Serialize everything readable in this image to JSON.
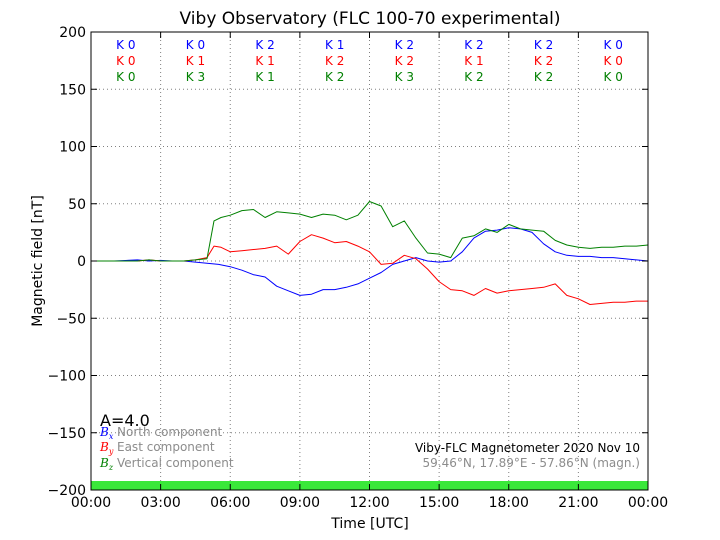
{
  "chart_data": {
    "type": "line",
    "title": "Viby Observatory (FLC 100-70 experimental)",
    "xlabel": "Time [UTC]",
    "ylabel": "Magnetic field [nT]",
    "xlim": [
      0,
      24
    ],
    "ylim": [
      -200,
      200
    ],
    "x_ticks": [
      "00:00",
      "03:00",
      "06:00",
      "09:00",
      "12:00",
      "15:00",
      "18:00",
      "21:00",
      "00:00"
    ],
    "y_ticks": [
      "200",
      "150",
      "100",
      "50",
      "0",
      "−50",
      "−100",
      "−150",
      "−200"
    ],
    "grid": true,
    "activity_index": "A=4.0",
    "k_indices": {
      "north": [
        "K 0",
        "K 0",
        "K 2",
        "K 1",
        "K 2",
        "K 2",
        "K 2",
        "K 0"
      ],
      "east": [
        "K 0",
        "K 1",
        "K 1",
        "K 2",
        "K 2",
        "K 1",
        "K 2",
        "K 0"
      ],
      "vertical": [
        "K 0",
        "K 3",
        "K 1",
        "K 2",
        "K 3",
        "K 2",
        "K 2",
        "K 0"
      ]
    },
    "series": [
      {
        "name": "North component",
        "symbol": "B",
        "subscript": "x",
        "color": "#0000ff",
        "x": [
          0,
          1,
          2,
          2.5,
          3,
          3.5,
          4,
          4.5,
          5,
          5.5,
          6,
          6.5,
          7,
          7.5,
          8,
          8.5,
          9,
          9.5,
          10,
          10.5,
          11,
          11.5,
          12,
          12.5,
          13,
          13.5,
          14,
          14.5,
          15,
          15.5,
          16,
          16.5,
          17,
          17.5,
          18,
          18.5,
          19,
          19.5,
          20,
          20.5,
          21,
          21.5,
          22,
          22.5,
          23,
          23.5,
          24
        ],
        "values": [
          0,
          0,
          1,
          0,
          0.5,
          0,
          0,
          -1,
          -2,
          -3,
          -5,
          -8,
          -12,
          -14,
          -22,
          -26,
          -30,
          -29,
          -25,
          -25,
          -23,
          -20,
          -15,
          -10,
          -3,
          0,
          3,
          0,
          -1,
          0,
          8,
          20,
          26,
          27,
          29,
          28,
          25,
          15,
          8,
          5,
          4,
          4,
          3,
          3,
          2,
          1,
          0
        ]
      },
      {
        "name": "East component",
        "symbol": "B",
        "subscript": "y",
        "color": "#ff0000",
        "x": [
          0,
          1,
          2,
          2.5,
          3,
          3.5,
          4,
          4.5,
          5,
          5.3,
          5.6,
          6,
          6.5,
          7,
          7.5,
          8,
          8.5,
          9,
          9.5,
          10,
          10.5,
          11,
          11.5,
          12,
          12.5,
          13,
          13.5,
          14,
          14.5,
          15,
          15.5,
          16,
          16.5,
          17,
          17.5,
          18,
          18.5,
          19,
          19.5,
          20,
          20.5,
          21,
          21.5,
          22,
          22.5,
          23,
          23.5,
          24
        ],
        "values": [
          0,
          0,
          0,
          1,
          0,
          0,
          0,
          1,
          3,
          13,
          12,
          8,
          9,
          10,
          11,
          13,
          6,
          17,
          23,
          20,
          16,
          17,
          13,
          8,
          -3,
          -2,
          5,
          2,
          -7,
          -18,
          -25,
          -26,
          -30,
          -24,
          -28,
          -26,
          -25,
          -24,
          -23,
          -20,
          -30,
          -33,
          -38,
          -37,
          -36,
          -36,
          -35,
          -35
        ]
      },
      {
        "name": "Vertical component",
        "symbol": "B",
        "subscript": "z",
        "color": "#008000",
        "x": [
          0,
          1,
          2,
          2.5,
          3,
          3.5,
          4,
          4.5,
          5,
          5.3,
          5.6,
          6,
          6.5,
          7,
          7.5,
          8,
          8.5,
          9,
          9.5,
          10,
          10.5,
          11,
          11.5,
          12,
          12.5,
          13,
          13.5,
          14,
          14.5,
          15,
          15.5,
          16,
          16.5,
          17,
          17.5,
          18,
          18.5,
          19,
          19.5,
          20,
          20.5,
          21,
          21.5,
          22,
          22.5,
          23,
          23.5,
          24
        ],
        "values": [
          0,
          0,
          0,
          1,
          0,
          0,
          0,
          1,
          2,
          35,
          38,
          40,
          44,
          45,
          38,
          43,
          42,
          41,
          38,
          41,
          40,
          36,
          40,
          52,
          48,
          30,
          35,
          20,
          7,
          6,
          3,
          20,
          22,
          28,
          25,
          32,
          28,
          27,
          26,
          18,
          14,
          12,
          11,
          12,
          12,
          13,
          13,
          14
        ]
      }
    ],
    "legend": {
      "placement": "bottom-left",
      "entries": [
        "North component",
        "East component",
        "Vertical component"
      ]
    },
    "info": {
      "line1": "Viby-FLC Magnetometer 2020 Nov 10",
      "line2": "59.46°N, 17.89°E - 57.86°N (magn.)"
    },
    "colors": {
      "status_bar": "#3ae83a",
      "info_line1": "#000000",
      "info_line2": "#8c8c8c",
      "grid": "#808080"
    }
  }
}
